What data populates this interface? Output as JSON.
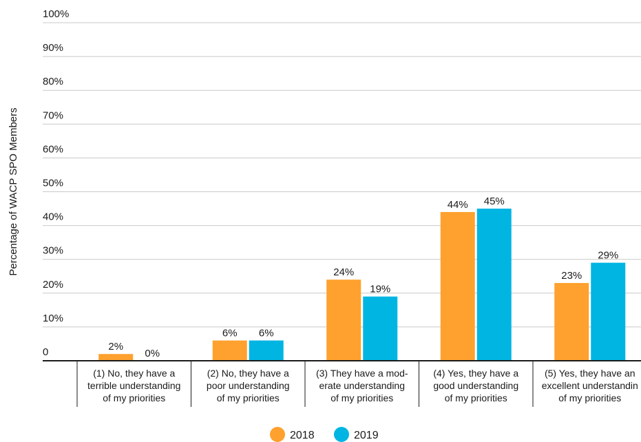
{
  "chart_data": {
    "type": "bar",
    "ylabel": "Percentage of WACP SPO Members",
    "ylim": [
      0,
      100
    ],
    "yticks": [
      "0",
      "10%",
      "20%",
      "30%",
      "40%",
      "50%",
      "60%",
      "70%",
      "80%",
      "90%",
      "100%"
    ],
    "categories": [
      [
        "(1) No, they have a",
        "terrible understanding",
        "of my priorities"
      ],
      [
        "(2) No, they have a",
        "poor understanding",
        "of my priorities"
      ],
      [
        "(3) They have a mod-",
        "erate understanding",
        "of my priorities"
      ],
      [
        "(4) Yes, they have a",
        "good understanding",
        "of my priorities"
      ],
      [
        "(5) Yes, they have an",
        "excellent understandin",
        "of my priorities"
      ]
    ],
    "series": [
      {
        "name": "2018",
        "color": "#FFA12E",
        "values": [
          2,
          6,
          24,
          44,
          23
        ],
        "labels": [
          "2%",
          "6%",
          "24%",
          "44%",
          "23%"
        ]
      },
      {
        "name": "2019",
        "color": "#00B5E2",
        "values": [
          0,
          6,
          19,
          45,
          29
        ],
        "labels": [
          "0%",
          "6%",
          "19%",
          "45%",
          "29%"
        ]
      }
    ],
    "grid": true,
    "legend": "bottom-center"
  }
}
